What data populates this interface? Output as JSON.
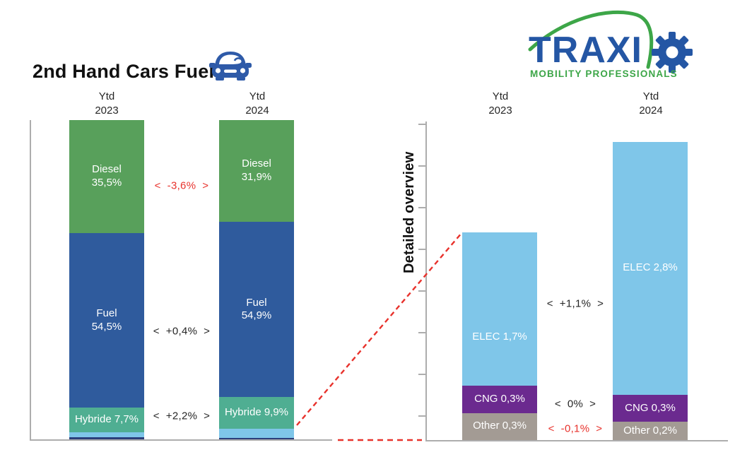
{
  "header": {
    "title": "2nd Hand Cars Fuel"
  },
  "logo": {
    "brand": "TRAXI",
    "brand_o": "gear-as-letter-O",
    "subtitle": "MOBILITY PROFESSIONALS",
    "brand_color": "#2456A4",
    "accent_green": "#3DA648"
  },
  "colors": {
    "red_accent": "#E8322C",
    "delta_text": "#262626",
    "axis_gray": "#ADADAD",
    "bar_label_white": "#FFFFFF"
  },
  "chart_data": [
    {
      "id": "fuel-share-main",
      "type": "bar",
      "stacked": true,
      "title": "2nd Hand Cars Fuel",
      "categories": [
        "Ytd\n2023",
        "Ytd\n2024"
      ],
      "unit": "%",
      "ylim": [
        0,
        100
      ],
      "grid": false,
      "legend": "labels-inside-bars",
      "series": [
        {
          "name": "Diesel",
          "color": "#58A05B",
          "values": [
            35.5,
            31.9
          ],
          "labels": [
            "Diesel\n35,5%",
            "Diesel\n31,9%"
          ]
        },
        {
          "name": "Fuel",
          "color": "#2F5B9D",
          "values": [
            54.5,
            54.9
          ],
          "labels": [
            "Fuel\n54,5%",
            "Fuel\n54,9%"
          ]
        },
        {
          "name": "Hybride",
          "color": "#4FAE92",
          "values": [
            7.7,
            9.9
          ],
          "labels": [
            "Hybride 7,7%",
            "Hybride 9,9%"
          ]
        },
        {
          "name": "ELEC",
          "color": "#7FC6E9",
          "values": [
            1.7,
            2.8
          ],
          "labels": [
            "",
            ""
          ]
        },
        {
          "name": "CNG+Other",
          "color": "#2C3F7B",
          "values": [
            0.6,
            0.5
          ],
          "labels": [
            "",
            ""
          ]
        }
      ],
      "deltas": [
        {
          "row": "Diesel",
          "text": "<  -3,6%  >",
          "color": "#E8322C"
        },
        {
          "row": "Fuel",
          "text": "<  +0,4%  >",
          "color": "#262626"
        },
        {
          "row": "Hybride",
          "text": "<  +2,2%  >",
          "color": "#262626"
        }
      ]
    },
    {
      "id": "detailed-overview",
      "type": "bar",
      "stacked": true,
      "axis_label": "Detailed overview",
      "categories": [
        "Ytd\n2023",
        "Ytd\n2024"
      ],
      "unit": "%",
      "ylim": [
        0,
        3.5
      ],
      "grid": false,
      "legend": "labels-inside-bars",
      "series": [
        {
          "name": "ELEC",
          "color": "#7FC6E9",
          "values": [
            1.7,
            2.8
          ],
          "labels": [
            "ELEC 1,7%",
            "ELEC 2,8%"
          ]
        },
        {
          "name": "CNG",
          "color": "#6B2A8F",
          "values": [
            0.3,
            0.3
          ],
          "labels": [
            "CNG 0,3%",
            "CNG 0,3%"
          ]
        },
        {
          "name": "Other",
          "color": "#A39B94",
          "values": [
            0.3,
            0.2
          ],
          "labels": [
            "Other 0,3%",
            "Other 0,2%"
          ]
        }
      ],
      "deltas": [
        {
          "row": "ELEC",
          "text": "<  +1,1%  >",
          "color": "#262626"
        },
        {
          "row": "CNG",
          "text": "<  0%  >",
          "color": "#262626"
        },
        {
          "row": "Other",
          "text": "<  -0,1%  >",
          "color": "#E8322C"
        }
      ]
    }
  ]
}
